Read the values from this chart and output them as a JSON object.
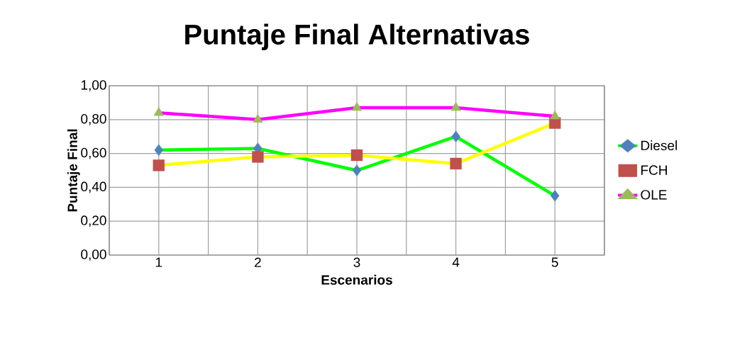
{
  "chart_data": {
    "type": "line",
    "title": "Puntaje Final Alternativas",
    "xlabel": "Escenarios",
    "ylabel": "Puntaje Final",
    "categories": [
      "1",
      "2",
      "3",
      "4",
      "5"
    ],
    "series": [
      {
        "name": "Diesel",
        "color": "#00ff00",
        "colors": [
          "#4f81bd",
          "#4f81bd",
          "#4f81bd",
          "#4f81bd",
          "#4f81bd"
        ],
        "marker": "diamond",
        "values": [
          0.62,
          0.63,
          0.5,
          0.7,
          0.35
        ]
      },
      {
        "name": "FCH",
        "color": "#ffff00",
        "colors": [
          "#c0504d",
          "#c0504d",
          "#c0504d",
          "#c0504d",
          "#c0504d"
        ],
        "marker": "square",
        "values": [
          0.53,
          0.58,
          0.59,
          0.54,
          0.78
        ]
      },
      {
        "name": "OLE",
        "color": "#ff00ff",
        "colors": [
          "#9bbb59",
          "#9bbb59",
          "#9bbb59",
          "#9bbb59",
          "#9bbb59"
        ],
        "marker": "triangle",
        "values": [
          0.84,
          0.8,
          0.87,
          0.87,
          0.82
        ]
      }
    ],
    "ylim": [
      0,
      1
    ],
    "yticks": [
      {
        "value": 0,
        "label": "0,00"
      },
      {
        "value": 0.2,
        "label": "0,20"
      },
      {
        "value": 0.4,
        "label": "0,40"
      },
      {
        "value": 0.6,
        "label": "0,60"
      },
      {
        "value": 0.8,
        "label": "0,80"
      },
      {
        "value": 1,
        "label": "1,00"
      }
    ],
    "grid": true,
    "legend": "right",
    "line_style": "solid"
  }
}
